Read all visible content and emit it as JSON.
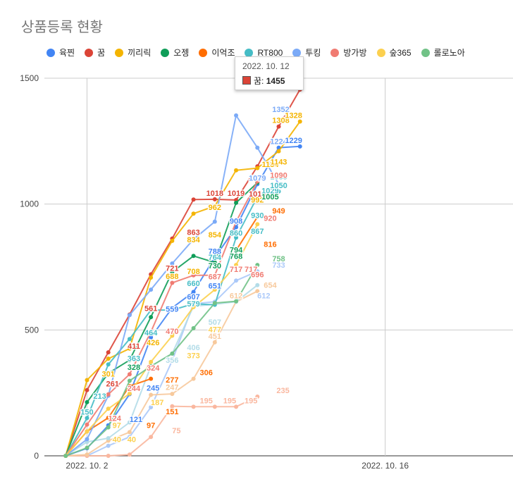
{
  "title": "상품등록 현황",
  "tooltip": {
    "date": "2022. 10. 12",
    "series": "꿈",
    "value": "1455",
    "color": "#db4437"
  },
  "chart_data": {
    "type": "line",
    "title": "상품등록 현황",
    "xlabel": "",
    "ylabel": "",
    "ylim": [
      0,
      1500
    ],
    "yticks": [
      0,
      500,
      1000,
      1500
    ],
    "xlim": [
      -1,
      21
    ],
    "xticks": [
      {
        "x": 1,
        "label": "2022. 10. 2"
      },
      {
        "x": 15,
        "label": "2022. 10. 16"
      }
    ],
    "grid": true,
    "legend": "top",
    "x": [
      0,
      1,
      2,
      3,
      4,
      5,
      6,
      7,
      8,
      9,
      10,
      11,
      12
    ],
    "series": [
      {
        "name": "육찐",
        "color": "#4285f4",
        "values": [
          0,
          30,
          121,
          245,
          470,
          588,
          651,
          788,
          908,
          1079,
          1224,
          1229,
          null
        ]
      },
      {
        "name": "꿈",
        "color": "#db4437",
        "values": [
          0,
          261,
          411,
          561,
          721,
          863,
          1018,
          1019,
          1016,
          1150,
          1308,
          1455,
          null
        ]
      },
      {
        "name": "끼리릭",
        "color": "#f4b400",
        "values": [
          0,
          301,
          386,
          426,
          708,
          854,
          962,
          992,
          1134,
          1143,
          1210,
          1328,
          null
        ]
      },
      {
        "name": "오젱",
        "color": "#0f9d58",
        "values": [
          0,
          213,
          328,
          380,
          551,
          730,
          794,
          768,
          1005,
          1085,
          null,
          null,
          null
        ]
      },
      {
        "name": "이억조",
        "color": "#ff6d00",
        "values": [
          0,
          97,
          151,
          277,
          306,
          null,
          null,
          null,
          816,
          949,
          null,
          null,
          null
        ]
      },
      {
        "name": "RT800",
        "color": "#46bdc6",
        "values": [
          0,
          150,
          363,
          464,
          579,
          579,
          604,
          600,
          867,
          1029,
          1050,
          null,
          null
        ]
      },
      {
        "name": "투킹",
        "color": "#7baaf7",
        "values": [
          0,
          66,
          239,
          559,
          660,
          764,
          860,
          930,
          1352,
          1224,
          1079,
          null,
          null
        ]
      },
      {
        "name": "방가방",
        "color": "#f07b72",
        "values": [
          0,
          124,
          244,
          324,
          492,
          687,
          717,
          717,
          930,
          1090,
          null,
          null,
          null
        ]
      },
      {
        "name": "숲365",
        "color": "#fcd04f",
        "values": [
          0,
          97,
          187,
          247,
          373,
          477,
          591,
          660,
          758,
          920,
          null,
          null,
          null
        ]
      },
      {
        "name": "롤로노아",
        "color": "#71c287",
        "values": [
          0,
          32,
          113,
          298,
          356,
          406,
          507,
          607,
          614,
          758,
          null,
          null,
          null
        ]
      }
    ],
    "extra_series": [
      {
        "name": "",
        "color": "#abc9f9",
        "values": [
          0,
          0,
          40,
          75,
          193,
          378,
          604,
          612,
          696,
          733
        ]
      },
      {
        "name": "",
        "color": "#fab79f",
        "values": [
          0,
          0,
          0,
          5,
          75,
          197,
          195,
          195,
          195,
          235
        ]
      },
      {
        "name": "",
        "color": "#f7c99c",
        "values": [
          0,
          5,
          60,
          94,
          242,
          246,
          306,
          451,
          612,
          654
        ]
      },
      {
        "name": "",
        "color": "#b3dce8",
        "values": [
          0,
          55,
          70,
          133,
          356,
          406,
          594,
          602,
          612,
          678
        ]
      }
    ],
    "annotations": [
      {
        "x": 1,
        "y": 150,
        "text": "150",
        "color": "#46bdc6"
      },
      {
        "x": 1.6,
        "y": 213,
        "text": "213",
        "color": "#46bdc6"
      },
      {
        "x": 2,
        "y": 301,
        "text": "301",
        "color": "#f4b400"
      },
      {
        "x": 2.2,
        "y": 261,
        "text": "261",
        "color": "#db4437"
      },
      {
        "x": 2.3,
        "y": 124,
        "text": "124",
        "color": "#f07b72"
      },
      {
        "x": 2.4,
        "y": 97,
        "text": "97",
        "color": "#fcd04f"
      },
      {
        "x": 2.4,
        "y": 40,
        "text": "40",
        "color": "#fcd04f"
      },
      {
        "x": 3.2,
        "y": 411,
        "text": "411",
        "color": "#db4437"
      },
      {
        "x": 3.2,
        "y": 363,
        "text": "363",
        "color": "#46bdc6"
      },
      {
        "x": 3.2,
        "y": 328,
        "text": "328",
        "color": "#0f9d58"
      },
      {
        "x": 3.2,
        "y": 244,
        "text": "244",
        "color": "#f07b72"
      },
      {
        "x": 3.3,
        "y": 121,
        "text": "121",
        "color": "#4285f4"
      },
      {
        "x": 3.1,
        "y": 40,
        "text": "40",
        "color": "#fcd04f"
      },
      {
        "x": 4,
        "y": 561,
        "text": "561",
        "color": "#db4437"
      },
      {
        "x": 4,
        "y": 464,
        "text": "464",
        "color": "#46bdc6"
      },
      {
        "x": 4.1,
        "y": 426,
        "text": "426",
        "color": "#f4b400"
      },
      {
        "x": 4.1,
        "y": 324,
        "text": "324",
        "color": "#f07b72"
      },
      {
        "x": 4.1,
        "y": 245,
        "text": "245",
        "color": "#4285f4"
      },
      {
        "x": 4,
        "y": 97,
        "text": "97",
        "color": "#ff6d00"
      },
      {
        "x": 4.3,
        "y": 187,
        "text": "187",
        "color": "#fcd04f"
      },
      {
        "x": 5,
        "y": 721,
        "text": "721",
        "color": "#db4437"
      },
      {
        "x": 5,
        "y": 688,
        "text": "688",
        "color": "#f4b400"
      },
      {
        "x": 5,
        "y": 559,
        "text": "559",
        "color": "#4285f4"
      },
      {
        "x": 5,
        "y": 470,
        "text": "470",
        "color": "#f07b72"
      },
      {
        "x": 5,
        "y": 356,
        "text": "356",
        "color": "#b3dce8"
      },
      {
        "x": 5,
        "y": 277,
        "text": "277",
        "color": "#ff6d00"
      },
      {
        "x": 5,
        "y": 247,
        "text": "247",
        "color": "#f7c99c"
      },
      {
        "x": 5,
        "y": 151,
        "text": "151",
        "color": "#ff6d00"
      },
      {
        "x": 5.2,
        "y": 75,
        "text": "75",
        "color": "#fab79f"
      },
      {
        "x": 6,
        "y": 863,
        "text": "863",
        "color": "#db4437"
      },
      {
        "x": 6,
        "y": 834,
        "text": "834",
        "color": "#f4b400"
      },
      {
        "x": 6,
        "y": 708,
        "text": "708",
        "color": "#f4b400"
      },
      {
        "x": 6,
        "y": 660,
        "text": "660",
        "color": "#46bdc6"
      },
      {
        "x": 6,
        "y": 607,
        "text": "607",
        "color": "#4285f4"
      },
      {
        "x": 6,
        "y": 579,
        "text": "579",
        "color": "#46bdc6"
      },
      {
        "x": 6,
        "y": 406,
        "text": "406",
        "color": "#b3dce8"
      },
      {
        "x": 6,
        "y": 373,
        "text": "373",
        "color": "#fcd04f"
      },
      {
        "x": 6.6,
        "y": 306,
        "text": "306",
        "color": "#ff6d00"
      },
      {
        "x": 6.6,
        "y": 195,
        "text": "195",
        "color": "#fab79f"
      },
      {
        "x": 7,
        "y": 1018,
        "text": "1018",
        "color": "#db4437"
      },
      {
        "x": 7,
        "y": 962,
        "text": "962",
        "color": "#f4b400"
      },
      {
        "x": 7,
        "y": 854,
        "text": "854",
        "color": "#f4b400"
      },
      {
        "x": 7,
        "y": 788,
        "text": "788",
        "color": "#4285f4"
      },
      {
        "x": 7,
        "y": 764,
        "text": "764",
        "color": "#46bdc6"
      },
      {
        "x": 7,
        "y": 730,
        "text": "730",
        "color": "#0f9d58"
      },
      {
        "x": 7,
        "y": 687,
        "text": "687",
        "color": "#f07b72"
      },
      {
        "x": 7,
        "y": 651,
        "text": "651",
        "color": "#4285f4"
      },
      {
        "x": 7,
        "y": 507,
        "text": "507",
        "color": "#b3dce8"
      },
      {
        "x": 7,
        "y": 477,
        "text": "477",
        "color": "#fcd04f"
      },
      {
        "x": 7,
        "y": 451,
        "text": "451",
        "color": "#f7c99c"
      },
      {
        "x": 7.7,
        "y": 195,
        "text": "195",
        "color": "#fab79f"
      },
      {
        "x": 8,
        "y": 1019,
        "text": "1019",
        "color": "#db4437"
      },
      {
        "x": 8,
        "y": 908,
        "text": "908",
        "color": "#4285f4"
      },
      {
        "x": 8,
        "y": 860,
        "text": "860",
        "color": "#46bdc6"
      },
      {
        "x": 8,
        "y": 794,
        "text": "794",
        "color": "#0f9d58"
      },
      {
        "x": 8,
        "y": 768,
        "text": "768",
        "color": "#0f9d58"
      },
      {
        "x": 8,
        "y": 717,
        "text": "717",
        "color": "#f07b72"
      },
      {
        "x": 8,
        "y": 612,
        "text": "612",
        "color": "#f7c99c"
      },
      {
        "x": 8.7,
        "y": 717,
        "text": "717",
        "color": "#f07b72"
      },
      {
        "x": 8.7,
        "y": 195,
        "text": "195",
        "color": "#fab79f"
      },
      {
        "x": 9,
        "y": 1079,
        "text": "1079",
        "color": "#7baaf7"
      },
      {
        "x": 9,
        "y": 1016,
        "text": "1016",
        "color": "#db4437"
      },
      {
        "x": 9,
        "y": 992,
        "text": "992",
        "color": "#f4b400"
      },
      {
        "x": 9,
        "y": 930,
        "text": "930",
        "color": "#46bdc6"
      },
      {
        "x": 9,
        "y": 867,
        "text": "867",
        "color": "#46bdc6"
      },
      {
        "x": 9,
        "y": 696,
        "text": "696",
        "color": "#f07b72"
      },
      {
        "x": 9.3,
        "y": 612,
        "text": "612",
        "color": "#abc9f9"
      },
      {
        "x": 9.6,
        "y": 1134,
        "text": "1134",
        "color": "#f4b400"
      },
      {
        "x": 9.6,
        "y": 1029,
        "text": "1029",
        "color": "#46bdc6"
      },
      {
        "x": 9.6,
        "y": 1005,
        "text": "1005",
        "color": "#0f9d58"
      },
      {
        "x": 9.6,
        "y": 920,
        "text": "920",
        "color": "#f07b72"
      },
      {
        "x": 9.6,
        "y": 816,
        "text": "816",
        "color": "#ff6d00"
      },
      {
        "x": 9.6,
        "y": 654,
        "text": "654",
        "color": "#f7c99c"
      },
      {
        "x": 10,
        "y": 1224,
        "text": "1224",
        "color": "#7baaf7"
      },
      {
        "x": 10,
        "y": 1143,
        "text": "1143",
        "color": "#f4b400"
      },
      {
        "x": 10,
        "y": 1085,
        "text": "1085",
        "color": "#46bdc6"
      },
      {
        "x": 10,
        "y": 1050,
        "text": "1050",
        "color": "#46bdc6"
      },
      {
        "x": 10,
        "y": 1090,
        "text": "1090",
        "color": "#f07b72"
      },
      {
        "x": 10,
        "y": 949,
        "text": "949",
        "color": "#ff6d00"
      },
      {
        "x": 10,
        "y": 758,
        "text": "758",
        "color": "#71c287"
      },
      {
        "x": 10,
        "y": 733,
        "text": "733",
        "color": "#abc9f9"
      },
      {
        "x": 10.1,
        "y": 1352,
        "text": "1352",
        "color": "#7baaf7"
      },
      {
        "x": 10.1,
        "y": 1308,
        "text": "1308",
        "color": "#f4b400"
      },
      {
        "x": 10.7,
        "y": 1328,
        "text": "1328",
        "color": "#f4b400"
      },
      {
        "x": 10.7,
        "y": 1229,
        "text": "1229",
        "color": "#4285f4"
      },
      {
        "x": 10.2,
        "y": 235,
        "text": "235",
        "color": "#fab79f"
      }
    ]
  }
}
